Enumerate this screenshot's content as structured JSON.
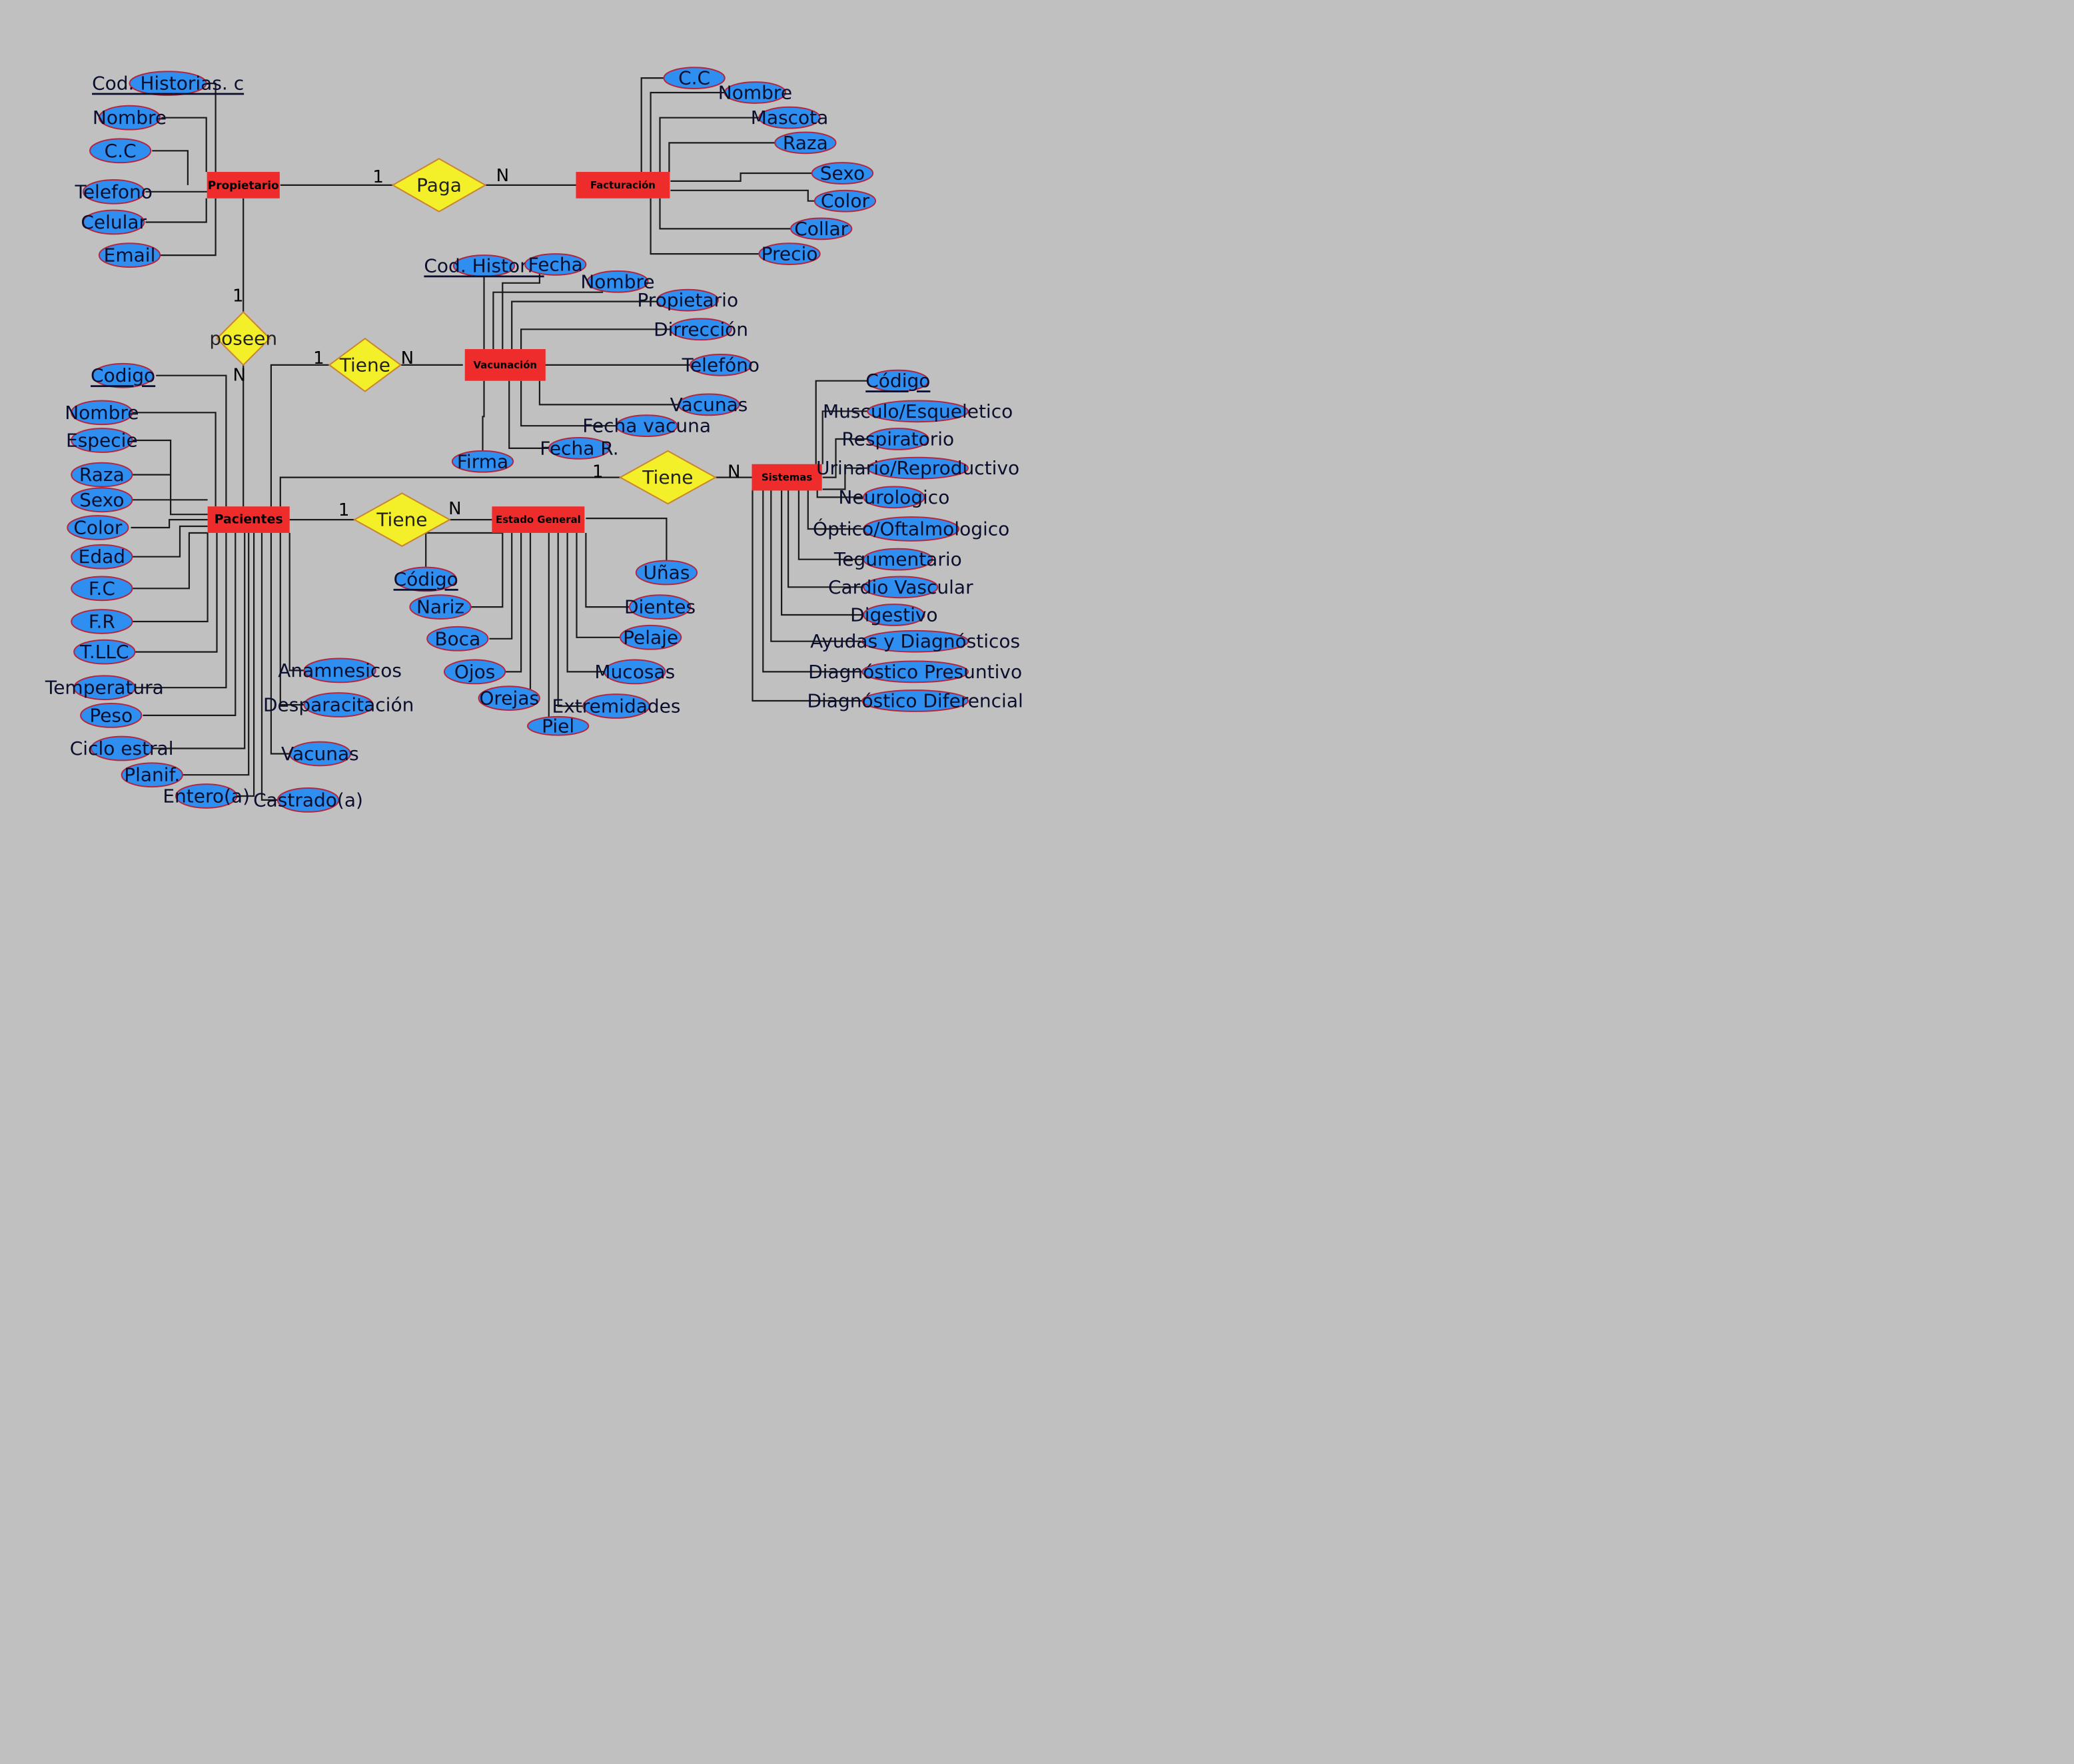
{
  "colors": {
    "background": "#c0c0c0",
    "entity": "#ee2c2c",
    "attribute": "#2f8ff0",
    "relationship": "#f3f02a",
    "line": "#1a1a1a"
  },
  "entities": {
    "propietario": "Propietario",
    "facturacion": "Facturación",
    "vacunacion": "Vacunación",
    "pacientes": "Pacientes",
    "estado_general": "Estado General",
    "sistemas": "Sistemas"
  },
  "relationships": {
    "paga": "Paga",
    "poseen": "poseen",
    "tiene_vacunacion": "Tiene",
    "tiene_sistemas": "Tiene",
    "tiene_estado": "Tiene"
  },
  "cardinalities": {
    "paga_1": "1",
    "paga_n": "N",
    "poseen_1": "1",
    "poseen_n": "N",
    "tiene_vac_1": "1",
    "tiene_vac_n": "N",
    "tiene_sis_1": "1",
    "tiene_sis_n": "N",
    "tiene_est_1": "1",
    "tiene_est_n": "N"
  },
  "attributes": {
    "propietario": [
      "Cod. Historias. c",
      "Nombre",
      "C.C",
      "Telefono",
      "Celular",
      "Email"
    ],
    "facturacion": [
      "C.C",
      "Nombre",
      "Mascota",
      "Raza",
      "Sexo",
      "Color",
      "Collar",
      "Precio"
    ],
    "vacunacion": [
      "Cod. Historia",
      "Fecha",
      "Nombre",
      "Propietario",
      "Dirrección",
      "Telefóno",
      "Vacunas",
      "Fecha vacuna",
      "Fecha R.",
      "Firma"
    ],
    "pacientes": [
      "Codigo",
      "Nombre",
      "Especie",
      "Raza",
      "Sexo",
      "Color",
      "Edad",
      "F.C",
      "F.R",
      "T.LLC",
      "Temperatura",
      "Peso",
      "Ciclo estral",
      "Planif.",
      "Entero(a)",
      "Castrado(a)",
      "Vacunas",
      "Desparacitación",
      "Anamnesicos"
    ],
    "estado_general": [
      "Código",
      "Nariz",
      "Boca",
      "Ojos",
      "Orejas",
      "Piel",
      "Extremidades",
      "Mucosas",
      "Pelaje",
      "Dientes",
      "Uñas"
    ],
    "sistemas": [
      "Código",
      "Musculo/Esqueletico",
      "Respiratorio",
      "Urinario/Reproductivo",
      "Neurologico",
      "Óptico/Oftalmologico",
      "Tegumentario",
      "Cardio Vascular",
      "Digestivo",
      "Ayudas y Diagnósticos",
      "Diagnóstico Presuntivo",
      "Diagnóstico Diferencial"
    ]
  }
}
